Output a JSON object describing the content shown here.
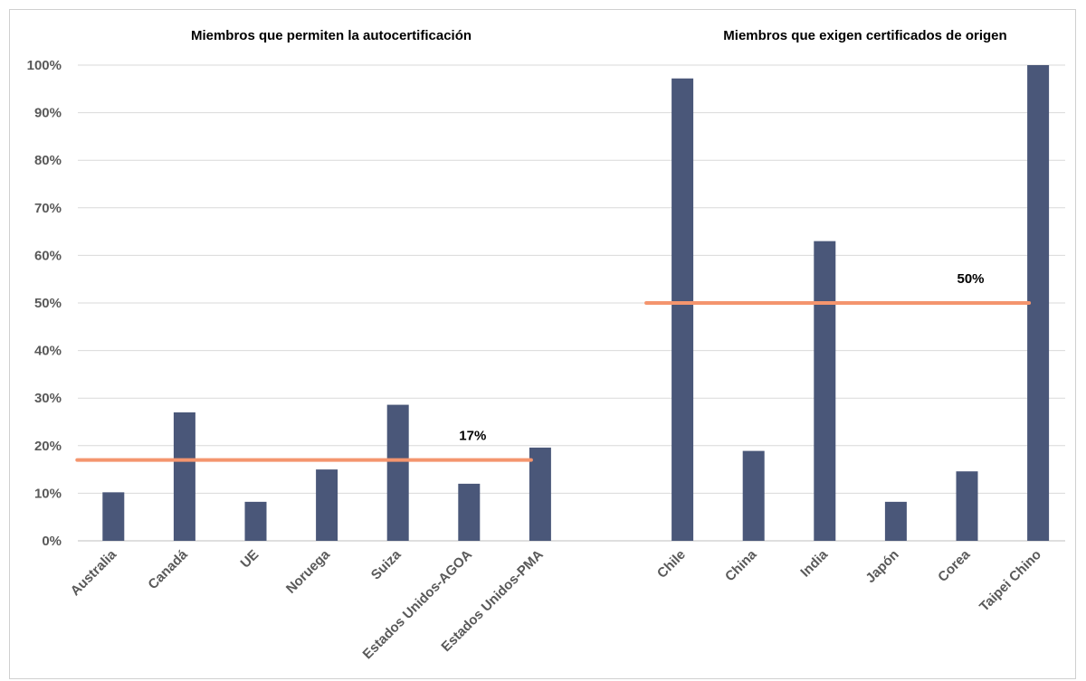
{
  "chart_data": {
    "type": "bar",
    "ylim": [
      0,
      100
    ],
    "y_ticks": [
      "0%",
      "10%",
      "20%",
      "30%",
      "40%",
      "50%",
      "60%",
      "70%",
      "80%",
      "90%",
      "100%"
    ],
    "grid": true,
    "colors": {
      "bar": "#4a5779",
      "average_line": "#f4956e",
      "grid": "#d9d9d9"
    },
    "groups": [
      {
        "title": "Miembros que permiten la autocertificación",
        "categories": [
          "Australia",
          "Canadá",
          "UE",
          "Noruega",
          "Suiza",
          "Estados Unidos-AGOA",
          "Estados Unidos-PMA"
        ],
        "values": [
          10.2,
          27,
          8.2,
          15,
          28.6,
          12,
          19.6
        ],
        "average": {
          "value": 17,
          "label": "17%"
        }
      },
      {
        "title": "Miembros que exigen certificados de origen",
        "categories": [
          "Chile",
          "China",
          "India",
          "Japón",
          "Corea",
          "Taipei Chino"
        ],
        "values": [
          97.2,
          18.9,
          63,
          8.2,
          14.6,
          100
        ],
        "average": {
          "value": 50,
          "label": "50%"
        }
      }
    ]
  }
}
